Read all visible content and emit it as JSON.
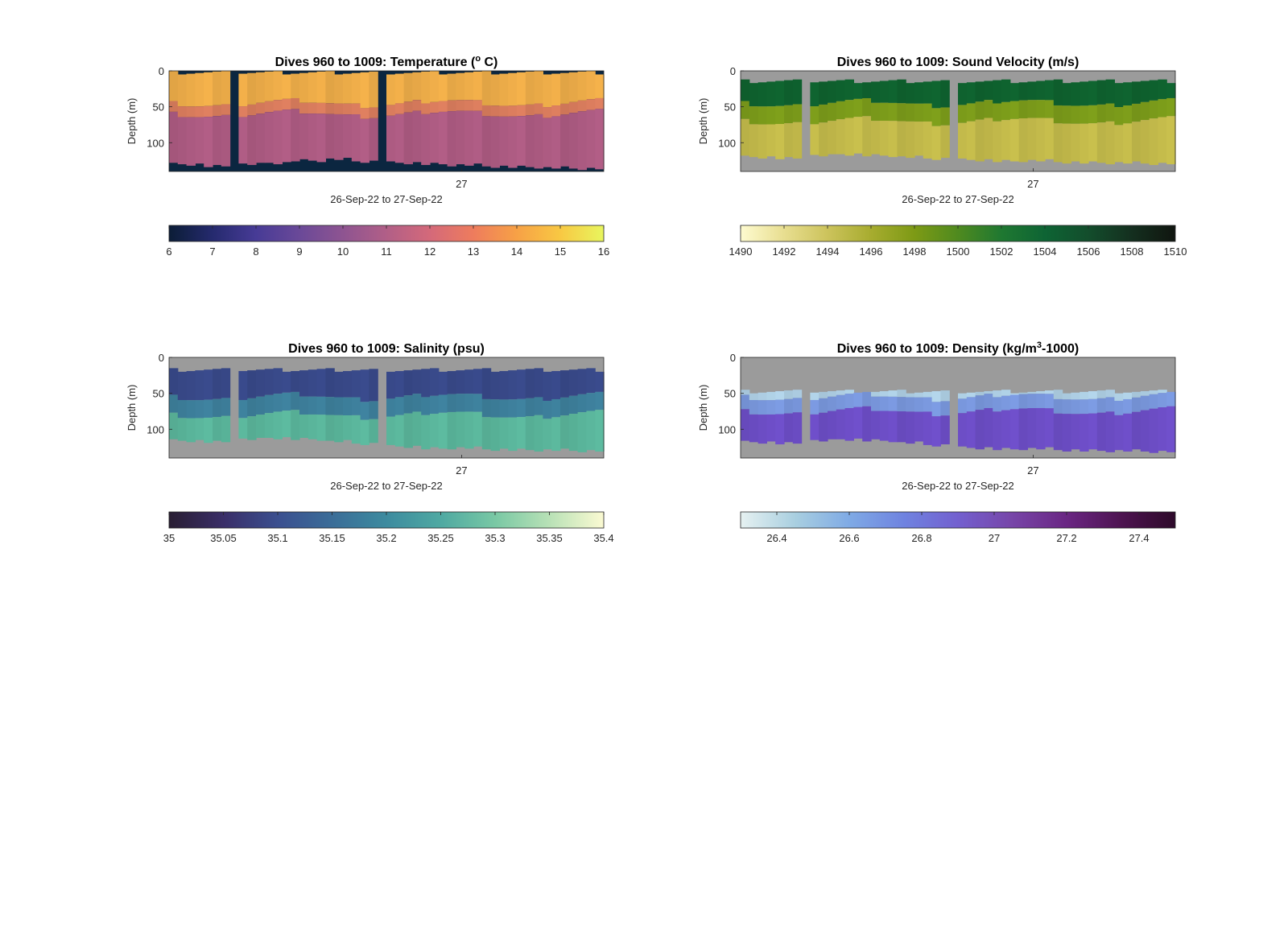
{
  "chart_data": [
    {
      "type": "heatmap",
      "title": "Dives 960 to 1009: Temperature (",
      "title_sup": "o",
      "title_end": " C)",
      "ylabel": "Depth (m)",
      "y_ticks": [
        "0",
        "50",
        "100"
      ],
      "x_tick": "27",
      "xlabel": "26-Sep-22 to 27-Sep-22",
      "ylim": [
        140,
        0
      ],
      "colorbar": {
        "ticks": [
          "6",
          "7",
          "8",
          "9",
          "10",
          "11",
          "12",
          "13",
          "14",
          "15",
          "16"
        ],
        "range": [
          6,
          16
        ],
        "stops": [
          "#0b1d36",
          "#252a6e",
          "#473b96",
          "#6a4998",
          "#8e5491",
          "#b15f87",
          "#d4697a",
          "#ee7c5d",
          "#f7a146",
          "#f8c843",
          "#e8f65e"
        ]
      },
      "background_color": "#0b2640",
      "layers": [
        {
          "name": "surface",
          "color": "#f5b24b",
          "depth": [
            0,
            45
          ]
        },
        {
          "name": "thermocline",
          "color": "#e08060",
          "depth": [
            45,
            60
          ]
        },
        {
          "name": "deep",
          "color": "#b25e86",
          "depth": [
            60,
            125
          ]
        }
      ],
      "gaps": [
        [
          0.14,
          0.16
        ],
        [
          0.48,
          0.5
        ]
      ],
      "bottom_depth": [
        130,
        133,
        130,
        128,
        125,
        123,
        126,
        128,
        130,
        131,
        133,
        134,
        135,
        136
      ]
    },
    {
      "type": "heatmap",
      "title": "Dives 960 to 1009: Sound Velocity (m/s)",
      "ylabel": "Depth (m)",
      "y_ticks": [
        "0",
        "50",
        "100"
      ],
      "x_tick": "27",
      "xlabel": "26-Sep-22 to 27-Sep-22",
      "ylim": [
        140,
        0
      ],
      "colorbar": {
        "ticks": [
          "1490",
          "1492",
          "1494",
          "1496",
          "1498",
          "1500",
          "1502",
          "1504",
          "1506",
          "1508",
          "1510"
        ],
        "range": [
          1490,
          1510
        ],
        "stops": [
          "#fefbd0",
          "#e8de90",
          "#ccc35c",
          "#a7ac2f",
          "#7d9a15",
          "#4f8a1f",
          "#1f7831",
          "#0e6434",
          "#134d2c",
          "#142f1f",
          "#10150f"
        ]
      },
      "background_color": "#9b9b9b",
      "layers": [
        {
          "name": "surface",
          "color": "#0f6530",
          "depth": [
            12,
            45
          ]
        },
        {
          "name": "thermocline",
          "color": "#7fa01b",
          "depth": [
            45,
            70
          ]
        },
        {
          "name": "deep",
          "color": "#c9c04d",
          "depth": [
            70,
            120
          ]
        }
      ],
      "gaps": [
        [
          0.14,
          0.16
        ],
        [
          0.48,
          0.5
        ]
      ],
      "bottom_depth": [
        120,
        122,
        118,
        116,
        118,
        120,
        122,
        124,
        126,
        125,
        127,
        128,
        128,
        129
      ]
    },
    {
      "type": "heatmap",
      "title": "Dives 960 to 1009: Salinity (psu)",
      "ylabel": "Depth (m)",
      "y_ticks": [
        "0",
        "50",
        "100"
      ],
      "x_tick": "27",
      "xlabel": "26-Sep-22 to 27-Sep-22",
      "ylim": [
        140,
        0
      ],
      "colorbar": {
        "ticks": [
          "35",
          "35.05",
          "35.1",
          "35.15",
          "35.2",
          "35.25",
          "35.3",
          "35.35",
          "35.4"
        ],
        "range": [
          35,
          35.4
        ],
        "stops": [
          "#291e33",
          "#3a2e68",
          "#3b4f8f",
          "#3b6d98",
          "#3d8b9f",
          "#4fa9a2",
          "#79c8a4",
          "#b8e1b6",
          "#fbfad2"
        ]
      },
      "background_color": "#9b9b9b",
      "layers": [
        {
          "name": "surface",
          "color": "#3a4b8d",
          "depth": [
            15,
            55
          ]
        },
        {
          "name": "mid",
          "color": "#3f83a0",
          "depth": [
            55,
            80
          ]
        },
        {
          "name": "deep",
          "color": "#5dbba0",
          "depth": [
            80,
            118
          ]
        }
      ],
      "gaps": [
        [
          0.14,
          0.16
        ],
        [
          0.48,
          0.5
        ]
      ],
      "bottom_depth": [
        116,
        118,
        114,
        112,
        114,
        117,
        120,
        124,
        127,
        126,
        128,
        129,
        129,
        130
      ]
    },
    {
      "type": "heatmap",
      "title": "Dives 960 to 1009: Density (kg/m",
      "title_sup": "3",
      "title_end": "-1000)",
      "ylabel": "Depth (m)",
      "y_ticks": [
        "0",
        "50",
        "100"
      ],
      "x_tick": "27",
      "xlabel": "26-Sep-22 to 27-Sep-22",
      "ylim": [
        140,
        0
      ],
      "colorbar": {
        "ticks": [
          "26.4",
          "26.6",
          "26.8",
          "27",
          "27.2",
          "27.4"
        ],
        "range": [
          26.3,
          27.5
        ],
        "stops": [
          "#e6f1f1",
          "#a9cfe0",
          "#7faae5",
          "#6f83e0",
          "#7360cf",
          "#7745a8",
          "#6a2683",
          "#4e1451",
          "#2e0a2a"
        ]
      },
      "background_color": "#9b9b9b",
      "layers": [
        {
          "name": "surface",
          "color": "#b4d6ec",
          "depth": [
            45,
            55
          ]
        },
        {
          "name": "mid",
          "color": "#7d9ce4",
          "depth": [
            55,
            75
          ]
        },
        {
          "name": "deep",
          "color": "#7050cc",
          "depth": [
            75,
            118
          ]
        }
      ],
      "gaps": [
        [
          0.14,
          0.16
        ],
        [
          0.48,
          0.5
        ]
      ],
      "bottom_depth": [
        118,
        120,
        116,
        114,
        116,
        119,
        122,
        126,
        128,
        127,
        129,
        130,
        130,
        131
      ]
    }
  ]
}
